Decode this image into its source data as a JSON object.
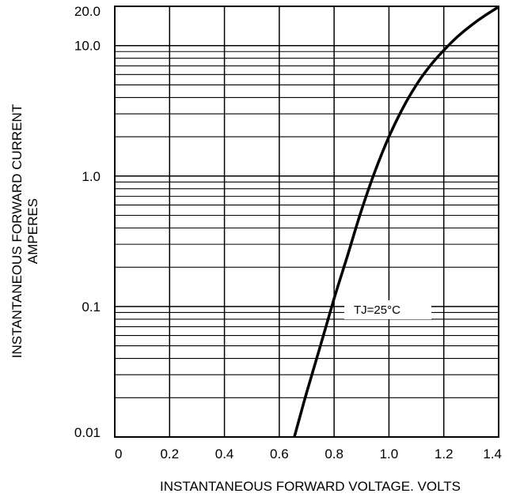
{
  "chart_data": {
    "type": "line",
    "title": "",
    "xlabel": "INSTANTANEOUS FORWARD VOLTAGE. VOLTS",
    "ylabel": [
      "INSTANTANEOUS FORWARD CURRENT",
      "AMPERES"
    ],
    "x_scale": "linear",
    "y_scale": "log",
    "xlim": [
      0,
      1.4
    ],
    "ylim": [
      0.01,
      20.0
    ],
    "x_ticks": [
      0,
      0.2,
      0.4,
      0.6,
      0.8,
      1.0,
      1.2,
      1.4
    ],
    "x_tick_labels": [
      "0",
      "0.2",
      "0.4",
      "0.6",
      "0.8",
      "1.0",
      "1.2",
      "1.4"
    ],
    "y_ticks": [
      0.01,
      0.1,
      1.0,
      10.0,
      20.0
    ],
    "y_tick_labels": [
      "0.01",
      "0.1",
      "1.0",
      "10.0",
      "20.0"
    ],
    "grid": true,
    "line_color": "#000000",
    "annotation": "TJ=25°C",
    "series": [
      {
        "x": [
          0.655,
          0.7,
          0.75,
          0.8,
          0.85,
          0.9,
          0.95,
          1.0,
          1.05,
          1.1,
          1.15,
          1.2,
          1.25,
          1.3,
          1.35,
          1.4
        ],
        "y": [
          0.01,
          0.022,
          0.05,
          0.115,
          0.25,
          0.55,
          1.1,
          2.0,
          3.3,
          5.0,
          7.0,
          9.2,
          11.7,
          14.3,
          17.0,
          19.8
        ]
      }
    ]
  }
}
